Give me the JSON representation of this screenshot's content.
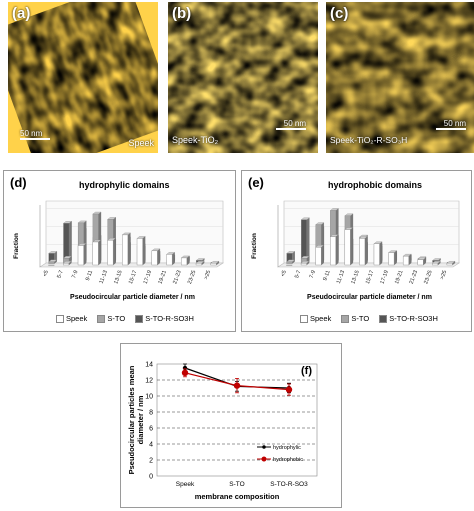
{
  "afm_images": [
    {
      "label": "(a)",
      "scale": "50 nm",
      "name": "Speek"
    },
    {
      "label": "(b)",
      "scale": "50 nm",
      "name": "Speek-TiO₂"
    },
    {
      "label": "(c)",
      "scale": "50 nm",
      "name": "Speek-TiO₂-R-SO₃H"
    }
  ],
  "colors": {
    "speek": "#ffffff",
    "sto": "#a6a6a6",
    "stoso3h": "#555555",
    "hydrophylic": "#000000",
    "hydrophobic": "#c00000"
  },
  "chart_data": [
    {
      "type": "bar",
      "panel_label": "(d)",
      "title": "hydrophylic domains",
      "ylabel": "Fraction",
      "xlabel": "Pseudocircular particle diameter / nm",
      "categories": [
        "<5",
        "5-7",
        "7-9",
        "9-11",
        "11-13",
        "13-15",
        "15-17",
        "17-19",
        "19-21",
        "21-23",
        "23-25",
        ">25"
      ],
      "series": [
        {
          "name": "Speek",
          "values": [
            0.0,
            0.01,
            0.11,
            0.13,
            0.14,
            0.17,
            0.15,
            0.08,
            0.06,
            0.04,
            0.01,
            0.01
          ]
        },
        {
          "name": "S-TO",
          "values": [
            0.01,
            0.03,
            0.23,
            0.28,
            0.25,
            0.14,
            0.1,
            0.04,
            0.02,
            0.01,
            0.0,
            0.0
          ]
        },
        {
          "name": "S-TO-R-SO3H",
          "values": [
            0.05,
            0.22,
            0.18,
            0.14,
            0.12,
            0.1,
            0.08,
            0.05,
            0.03,
            0.02,
            0.01,
            0.0
          ]
        }
      ]
    },
    {
      "type": "bar",
      "panel_label": "(e)",
      "title": "hydrophobic domains",
      "ylabel": "Fraction",
      "xlabel": "Pseudocircular particle diameter / nm",
      "categories": [
        "<5",
        "5-7",
        "7-9",
        "9-11",
        "11-13",
        "13-15",
        "15-17",
        "17-19",
        "19-21",
        "21-23",
        "23-25",
        ">25"
      ],
      "series": [
        {
          "name": "Speek",
          "values": [
            0.0,
            0.01,
            0.1,
            0.16,
            0.2,
            0.15,
            0.12,
            0.07,
            0.05,
            0.03,
            0.01,
            0.01
          ]
        },
        {
          "name": "S-TO",
          "values": [
            0.01,
            0.03,
            0.22,
            0.3,
            0.27,
            0.15,
            0.1,
            0.05,
            0.02,
            0.01,
            0.0,
            0.0
          ]
        },
        {
          "name": "S-TO-R-SO3H",
          "values": [
            0.05,
            0.24,
            0.19,
            0.14,
            0.12,
            0.1,
            0.08,
            0.05,
            0.03,
            0.02,
            0.01,
            0.0
          ]
        }
      ]
    },
    {
      "type": "line",
      "panel_label": "(f)",
      "categories": [
        "Speek",
        "S-TO",
        "S-TO-R-SO3"
      ],
      "xlabel": "membrane composition",
      "ylabel": "Pseudocircular particles mean diameter / nm",
      "ylim": [
        0,
        14
      ],
      "yticks": [
        0,
        2,
        4,
        6,
        8,
        10,
        12,
        14
      ],
      "grid": true,
      "legend_position": "bottom-right",
      "series": [
        {
          "name": "hydrophylic",
          "values": [
            13.5,
            11.2,
            11.0
          ],
          "errors": [
            0.5,
            0.6,
            0.6
          ]
        },
        {
          "name": "hydrophobic",
          "values": [
            12.9,
            11.3,
            10.8
          ],
          "errors": [
            0.5,
            0.9,
            0.7
          ]
        }
      ]
    }
  ]
}
